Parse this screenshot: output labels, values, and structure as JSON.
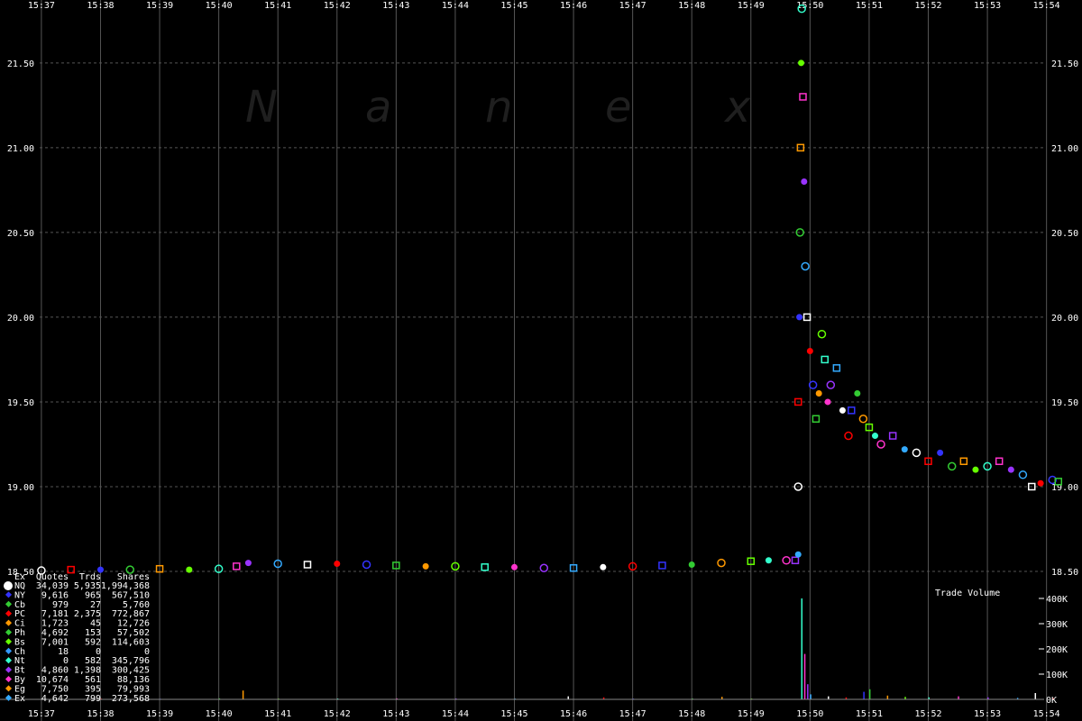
{
  "chart_data": {
    "type": "scatter",
    "watermark": [
      "N",
      "a",
      "n",
      "e",
      "x"
    ],
    "x_ticks": [
      "15:37",
      "15:38",
      "15:39",
      "15:40",
      "15:41",
      "15:42",
      "15:43",
      "15:44",
      "15:45",
      "15:46",
      "15:47",
      "15:48",
      "15:49",
      "15:50",
      "15:51",
      "15:52",
      "15:53",
      "15:54"
    ],
    "y_ticks": [
      "21.50",
      "21.00",
      "20.50",
      "20.00",
      "19.50",
      "19.00",
      "18.50"
    ],
    "ylim": [
      18.5,
      21.85
    ],
    "xlim_minutes": [
      36.3,
      54.6
    ],
    "grid": true,
    "price_series": {
      "name": "Trades",
      "points": [
        [
          37.0,
          18.505
        ],
        [
          37.5,
          18.51
        ],
        [
          38.0,
          18.51
        ],
        [
          38.5,
          18.51
        ],
        [
          39.0,
          18.515
        ],
        [
          39.5,
          18.51
        ],
        [
          40.0,
          18.515
        ],
        [
          40.3,
          18.53
        ],
        [
          40.5,
          18.55
        ],
        [
          41.0,
          18.545
        ],
        [
          41.5,
          18.54
        ],
        [
          42.0,
          18.545
        ],
        [
          42.5,
          18.54
        ],
        [
          43.0,
          18.535
        ],
        [
          43.5,
          18.53
        ],
        [
          44.0,
          18.53
        ],
        [
          44.5,
          18.525
        ],
        [
          45.0,
          18.525
        ],
        [
          45.5,
          18.52
        ],
        [
          46.0,
          18.52
        ],
        [
          46.5,
          18.525
        ],
        [
          47.0,
          18.53
        ],
        [
          47.5,
          18.535
        ],
        [
          48.0,
          18.54
        ],
        [
          48.5,
          18.55
        ],
        [
          49.0,
          18.56
        ],
        [
          49.3,
          18.565
        ],
        [
          49.6,
          18.565
        ],
        [
          49.75,
          18.565
        ],
        [
          49.8,
          18.6
        ],
        [
          49.8,
          19.0
        ],
        [
          49.8,
          19.5
        ],
        [
          49.82,
          20.0
        ],
        [
          49.83,
          20.5
        ],
        [
          49.84,
          21.0
        ],
        [
          49.85,
          21.5
        ],
        [
          49.86,
          21.82
        ],
        [
          49.88,
          21.3
        ],
        [
          49.9,
          20.8
        ],
        [
          49.92,
          20.3
        ],
        [
          49.95,
          20.0
        ],
        [
          50.0,
          19.8
        ],
        [
          50.05,
          19.6
        ],
        [
          50.1,
          19.4
        ],
        [
          50.15,
          19.55
        ],
        [
          50.2,
          19.9
        ],
        [
          50.25,
          19.75
        ],
        [
          50.3,
          19.5
        ],
        [
          50.35,
          19.6
        ],
        [
          50.45,
          19.7
        ],
        [
          50.55,
          19.45
        ],
        [
          50.65,
          19.3
        ],
        [
          50.7,
          19.45
        ],
        [
          50.8,
          19.55
        ],
        [
          50.9,
          19.4
        ],
        [
          51.0,
          19.35
        ],
        [
          51.1,
          19.3
        ],
        [
          51.2,
          19.25
        ],
        [
          51.4,
          19.3
        ],
        [
          51.6,
          19.22
        ],
        [
          51.8,
          19.2
        ],
        [
          52.0,
          19.15
        ],
        [
          52.2,
          19.2
        ],
        [
          52.4,
          19.12
        ],
        [
          52.6,
          19.15
        ],
        [
          52.8,
          19.1
        ],
        [
          53.0,
          19.12
        ],
        [
          53.2,
          19.15
        ],
        [
          53.4,
          19.1
        ],
        [
          53.6,
          19.07
        ],
        [
          53.75,
          19.0
        ],
        [
          53.9,
          19.02
        ],
        [
          54.1,
          19.04
        ],
        [
          54.2,
          19.03
        ]
      ]
    },
    "volume_panel": {
      "title": "Trade Volume",
      "y_ticks": [
        "400K",
        "300K",
        "200K",
        "100K",
        "0K"
      ],
      "ylim": [
        0,
        400000
      ],
      "bars": [
        [
          37.0,
          4000
        ],
        [
          38.0,
          3000
        ],
        [
          39.0,
          2500
        ],
        [
          40.0,
          4000
        ],
        [
          40.4,
          35000
        ],
        [
          41.0,
          3000
        ],
        [
          42.0,
          3500
        ],
        [
          43.0,
          4000
        ],
        [
          44.0,
          3500
        ],
        [
          45.0,
          3000
        ],
        [
          45.9,
          12000
        ],
        [
          46.5,
          8000
        ],
        [
          47.0,
          3000
        ],
        [
          48.0,
          3500
        ],
        [
          48.5,
          10000
        ],
        [
          49.0,
          3000
        ],
        [
          49.85,
          400000
        ],
        [
          49.9,
          180000
        ],
        [
          49.95,
          60000
        ],
        [
          50.0,
          20000
        ],
        [
          50.3,
          12000
        ],
        [
          50.6,
          8000
        ],
        [
          50.9,
          30000
        ],
        [
          51.0,
          40000
        ],
        [
          51.3,
          15000
        ],
        [
          51.6,
          10000
        ],
        [
          52.0,
          8000
        ],
        [
          52.5,
          12000
        ],
        [
          53.0,
          8000
        ],
        [
          53.5,
          6000
        ],
        [
          53.8,
          25000
        ],
        [
          54.1,
          5000
        ]
      ]
    }
  },
  "legend": {
    "headers": [
      "Ex",
      "Quotes",
      "Trds",
      "Shares"
    ],
    "rows": [
      {
        "ex": "NQ",
        "quotes": "34,039",
        "trades": "5,935",
        "shares": "1,994,368",
        "color": "#ffffff"
      },
      {
        "ex": "NY",
        "quotes": "9,616",
        "trades": "965",
        "shares": "567,510",
        "color": "#3333ff"
      },
      {
        "ex": "Cb",
        "quotes": "979",
        "trades": "27",
        "shares": "5,760",
        "color": "#33cc33"
      },
      {
        "ex": "PC",
        "quotes": "7,181",
        "trades": "2,375",
        "shares": "772,867",
        "color": "#ff0000"
      },
      {
        "ex": "Ci",
        "quotes": "1,723",
        "trades": "45",
        "shares": "12,726",
        "color": "#ff9900"
      },
      {
        "ex": "Ph",
        "quotes": "4,692",
        "trades": "153",
        "shares": "57,502",
        "color": "#33cc33"
      },
      {
        "ex": "Bs",
        "quotes": "7,001",
        "trades": "592",
        "shares": "114,603",
        "color": "#66ff00"
      },
      {
        "ex": "Ch",
        "quotes": "18",
        "trades": "0",
        "shares": "0",
        "color": "#3399ff"
      },
      {
        "ex": "Nt",
        "quotes": "0",
        "trades": "582",
        "shares": "345,796",
        "color": "#33ffcc"
      },
      {
        "ex": "Bt",
        "quotes": "4,860",
        "trades": "1,398",
        "shares": "300,425",
        "color": "#9933ff"
      },
      {
        "ex": "By",
        "quotes": "10,674",
        "trades": "561",
        "shares": "88,136",
        "color": "#ff33cc"
      },
      {
        "ex": "Eg",
        "quotes": "7,750",
        "trades": "395",
        "shares": "79,993",
        "color": "#ff9900"
      },
      {
        "ex": "Ex",
        "quotes": "4,642",
        "trades": "799",
        "shares": "273,568",
        "color": "#33aaff"
      }
    ]
  },
  "colors": {
    "background": "#000000",
    "grid": "#555555",
    "text": "#ffffff",
    "watermark": "#1f1f1f",
    "marker_palette": [
      "#ffffff",
      "#ff0000",
      "#3333ff",
      "#33cc33",
      "#ff9900",
      "#66ff00",
      "#33ffcc",
      "#ff33cc",
      "#9933ff",
      "#33aaff"
    ]
  }
}
